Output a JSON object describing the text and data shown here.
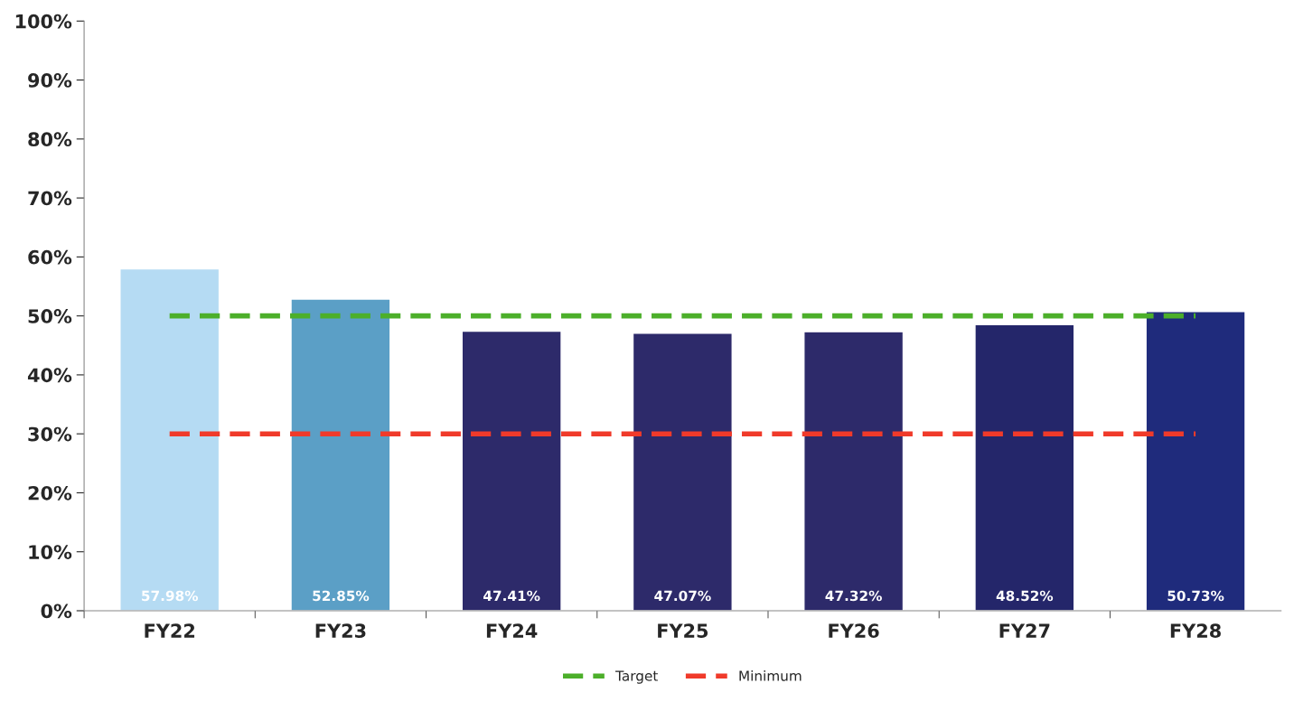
{
  "chart_data": {
    "type": "bar",
    "categories": [
      "FY22",
      "FY23",
      "FY24",
      "FY25",
      "FY26",
      "FY27",
      "FY28"
    ],
    "ylim": [
      0,
      100
    ],
    "yticks": [
      {
        "value": 0,
        "label": "0%"
      },
      {
        "value": 10,
        "label": "10%"
      },
      {
        "value": 20,
        "label": "20%"
      },
      {
        "value": 30,
        "label": "30%"
      },
      {
        "value": 40,
        "label": "40%"
      },
      {
        "value": 50,
        "label": "50%"
      },
      {
        "value": 60,
        "label": "60%"
      },
      {
        "value": 70,
        "label": "70%"
      },
      {
        "value": 80,
        "label": "80%"
      },
      {
        "value": 90,
        "label": "90%"
      },
      {
        "value": 100,
        "label": "100%"
      }
    ],
    "grid": false,
    "legend": "bottom",
    "line_style": "dashed",
    "series": [
      {
        "colors": [
          "#b5dbf3",
          "#5b9fc6",
          "#2d2a6a",
          "#2d2a6a",
          "#2d2a6a",
          "#24266a",
          "#1f2b7c"
        ],
        "values": [
          57.98,
          52.85,
          47.41,
          47.07,
          47.32,
          48.52,
          50.73
        ],
        "value_labels": [
          "57.98%",
          "52.85%",
          "47.41%",
          "47.07%",
          "47.32%",
          "48.52%",
          "50.73%"
        ]
      },
      {
        "type": "line",
        "name": "Target",
        "color": "#4caf2a",
        "values": [
          50,
          50,
          50,
          50,
          50,
          50,
          50
        ]
      },
      {
        "type": "line",
        "name": "Minimum",
        "color": "#f03a2a",
        "values": [
          30,
          30,
          30,
          30,
          30,
          30,
          30
        ]
      }
    ]
  }
}
